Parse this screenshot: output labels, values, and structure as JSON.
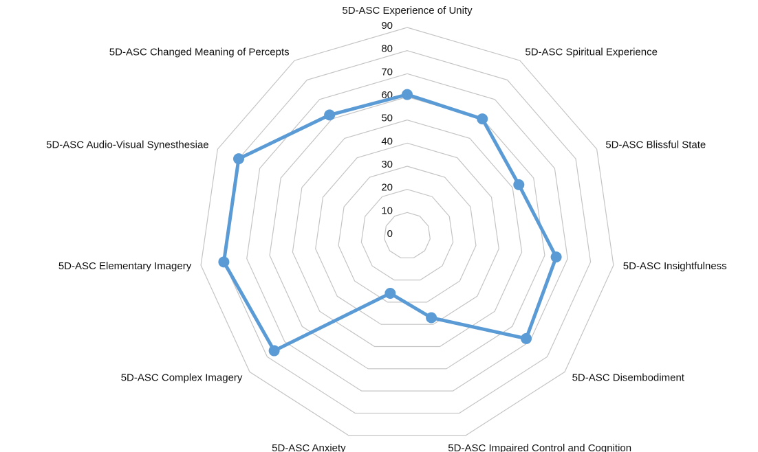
{
  "chart_data": {
    "type": "radar",
    "categories": [
      "5D-ASC Experience of Unity",
      "5D-ASC Spiritual Experience",
      "5D-ASC Blissful State",
      "5D-ASC Insightfulness",
      "5D-ASC Disembodiment",
      "5D-ASC Impaired Control and Cognition",
      "5D-ASC Anxiety",
      "5D-ASC Complex Imagery",
      "5D-ASC Elementary Imagery",
      "5D-ASC Audio-Visual Synesthesiae",
      "5D-ASC Changed Meaning of Percepts"
    ],
    "values": [
      61,
      60,
      53,
      65,
      68,
      37,
      26,
      76,
      80,
      80,
      62
    ],
    "color": "#5b9bd5",
    "rlim": [
      0,
      90
    ],
    "rticks": [
      0,
      10,
      20,
      30,
      40,
      50,
      60,
      70,
      80,
      90
    ],
    "grid": true
  }
}
